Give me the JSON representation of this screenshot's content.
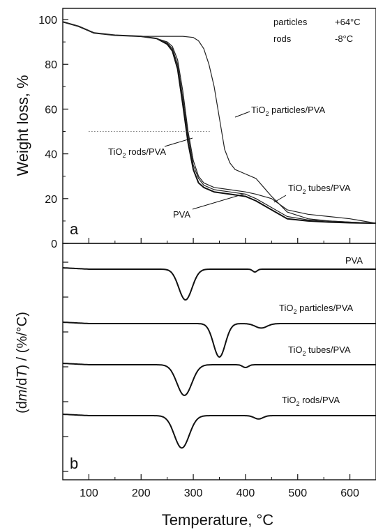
{
  "chart_data": [
    {
      "panel": "a",
      "type": "line",
      "title": "",
      "xlabel": "Temperature, °C",
      "ylabel": "Weight loss, %",
      "xlim": [
        50,
        650
      ],
      "ylim": [
        0,
        105
      ],
      "xticks": [
        100,
        200,
        300,
        400,
        500,
        600
      ],
      "yticks": [
        0,
        20,
        40,
        60,
        80,
        100
      ],
      "series": [
        {
          "name": "PVA",
          "x": [
            50,
            80,
            110,
            150,
            200,
            230,
            250,
            260,
            270,
            280,
            290,
            300,
            310,
            320,
            340,
            370,
            400,
            420,
            450,
            480,
            520,
            560,
            600,
            650
          ],
          "y": [
            99,
            97,
            94,
            93,
            92.5,
            91.5,
            89,
            86,
            78,
            62,
            45,
            33,
            27,
            25,
            23,
            22,
            21,
            19,
            15,
            11,
            10,
            9.5,
            9.2,
            9
          ]
        },
        {
          "name": "TiO2 rods/PVA",
          "x": [
            50,
            80,
            110,
            150,
            200,
            230,
            250,
            260,
            270,
            280,
            290,
            300,
            310,
            320,
            340,
            370,
            400,
            420,
            450,
            480,
            520,
            560,
            600,
            650
          ],
          "y": [
            99,
            97,
            94,
            93,
            92.5,
            91.5,
            89.5,
            87,
            80,
            65,
            48,
            35,
            29,
            26,
            24,
            23,
            22,
            20,
            16,
            12,
            10.5,
            10,
            9.5,
            9
          ]
        },
        {
          "name": "TiO2 tubes/PVA",
          "x": [
            50,
            80,
            110,
            150,
            200,
            230,
            250,
            260,
            270,
            280,
            290,
            300,
            310,
            320,
            340,
            370,
            400,
            420,
            450,
            480,
            520,
            560,
            600,
            650
          ],
          "y": [
            99,
            97,
            94,
            93,
            92.5,
            91.5,
            90,
            88,
            82,
            68,
            50,
            37,
            30,
            27,
            25,
            24,
            23,
            22,
            20,
            15,
            13,
            12,
            11,
            9
          ]
        },
        {
          "name": "TiO2 particles/PVA",
          "x": [
            50,
            80,
            110,
            150,
            200,
            250,
            280,
            300,
            310,
            320,
            330,
            340,
            350,
            360,
            370,
            380,
            400,
            420,
            450,
            480,
            520,
            560,
            600,
            650
          ],
          "y": [
            99,
            97,
            94,
            93,
            92.5,
            92.5,
            92.5,
            92,
            90.5,
            87,
            80,
            70,
            56,
            42,
            36,
            33,
            31,
            29,
            21,
            14,
            11,
            10,
            9.5,
            9
          ]
        }
      ],
      "annotations": {
        "temps": [
          {
            "label": "particles",
            "value": "+64°C"
          },
          {
            "label": "rods",
            "value": "-8°C"
          }
        ],
        "curve_labels": {
          "particles_main": "TiO",
          "particles_sub": "2",
          "particles_rest": " particles/PVA",
          "rods_main": "TiO",
          "rods_sub": "2",
          "rods_rest": " rods/PVA",
          "tubes_main": "TiO",
          "tubes_sub": "2",
          "tubes_rest": " tubes/PVA",
          "pva": "PVA"
        },
        "reference_line_y": 50,
        "reference_line_x": [
          100,
          400
        ]
      },
      "panel_label": "a"
    },
    {
      "panel": "b",
      "type": "line",
      "title": "",
      "xlabel": "Temperature, °C",
      "ylabel_parts": [
        "(d",
        "m",
        "/d",
        "T",
        ") / (%/°C)"
      ],
      "xlim": [
        50,
        650
      ],
      "grid": false,
      "series": [
        {
          "name": "PVA",
          "label_main": "PVA",
          "label_sub": "",
          "label_rest": "",
          "baseline": 0,
          "dips": [
            {
              "center": 285,
              "depth": 55,
              "width": 18
            },
            {
              "center": 418,
              "depth": 5,
              "width": 6
            }
          ],
          "shoulder": 0
        },
        {
          "name": "TiO2 particles/PVA",
          "label_main": "TiO",
          "label_sub": "2",
          "label_rest": " particles/PVA",
          "baseline": 0,
          "dips": [
            {
              "center": 350,
              "depth": 60,
              "width": 16
            },
            {
              "center": 430,
              "depth": 8,
              "width": 16
            }
          ],
          "shoulder": 0
        },
        {
          "name": "TiO2 tubes/PVA",
          "label_main": "TiO",
          "label_sub": "2",
          "label_rest": " tubes/PVA",
          "baseline": 0,
          "dips": [
            {
              "center": 283,
              "depth": 55,
              "width": 20
            },
            {
              "center": 400,
              "depth": 5,
              "width": 8
            }
          ],
          "shoulder": 0
        },
        {
          "name": "TiO2 rods/PVA",
          "label_main": "TiO",
          "label_sub": "2",
          "label_rest": " rods/PVA",
          "baseline": 0,
          "dips": [
            {
              "center": 278,
              "depth": 58,
              "width": 20
            },
            {
              "center": 425,
              "depth": 6,
              "width": 12
            }
          ],
          "shoulder": 0
        }
      ],
      "panel_label": "b"
    }
  ],
  "x_axis_title": "Temperature, °C",
  "y_axis_title_a": "Weight loss, %"
}
